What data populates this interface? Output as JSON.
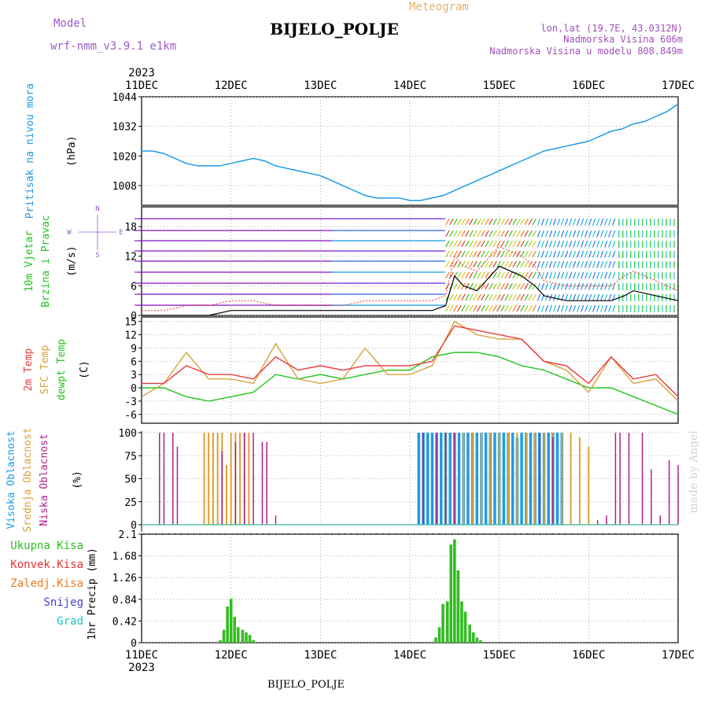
{
  "header": {
    "model_label": "Model",
    "model_name": "wrf-nmm_v3.9.1 e1km",
    "meteogram_label": "Meteogram",
    "station": "BIJELO_POLJE",
    "lonlat": "lon,lat (19.7E, 43.0312N)",
    "altitude": "Nadmorska Visina 606m",
    "model_altitude": "Nadmorska Visina u modelu 808.849m",
    "credit": "made by Angel",
    "footer_station": "BIJELO_POLJE"
  },
  "colors": {
    "pressure": "#1e9be6",
    "wind_speed": "#000000",
    "wind_gust": "#e83030",
    "temp2m": "#e83a3a",
    "sfc_temp": "#d8a23a",
    "dewpoint": "#22c41e",
    "high_cloud": "#1e9be6",
    "mid_cloud": "#e0a030",
    "low_cloud": "#b0208a",
    "total_precip": "#33bb22",
    "conv_precip": "#e83030",
    "frozen_precip": "#ee7a22",
    "snow": "#4a3ed8",
    "hail": "#22c4c4",
    "model_label": "#9a5cc8",
    "meteogram_label": "#e0b070",
    "station_info": "#a050b8"
  },
  "chart_data": [
    {
      "id": "pressure",
      "type": "line",
      "ylabel_1": "Pritisak na nivou mora",
      "unit": "(hPa)",
      "ylim": [
        1000,
        1044
      ],
      "yticks": [
        "1008",
        "1020",
        "1032",
        "1044"
      ],
      "x_days": [
        0,
        0.125,
        0.25,
        0.375,
        0.5,
        0.625,
        0.75,
        0.875,
        1.0,
        1.125,
        1.25,
        1.375,
        1.5,
        1.625,
        1.75,
        1.875,
        2.0,
        2.125,
        2.25,
        2.375,
        2.5,
        2.625,
        2.75,
        2.875,
        3.0,
        3.125,
        3.25,
        3.375,
        3.5,
        3.625,
        3.75,
        3.875,
        4.0,
        4.125,
        4.25,
        4.375,
        4.5,
        4.625,
        4.75,
        4.875,
        5.0,
        5.125,
        5.25,
        5.375,
        5.5,
        5.625,
        5.75,
        5.875,
        6.0
      ],
      "values": [
        1022,
        1022,
        1021,
        1019,
        1017,
        1016,
        1016,
        1016,
        1017,
        1018,
        1019,
        1018,
        1016,
        1015,
        1014,
        1013,
        1012,
        1010,
        1008,
        1006,
        1004,
        1003,
        1003,
        1003,
        1002,
        1002,
        1003,
        1004,
        1006,
        1008,
        1010,
        1012,
        1014,
        1016,
        1018,
        1020,
        1022,
        1023,
        1024,
        1025,
        1026,
        1028,
        1030,
        1031,
        1033,
        1034,
        1036,
        1038,
        1041
      ]
    },
    {
      "id": "wind",
      "type": "line",
      "ylabel_1": "10m Vjetar",
      "ylabel_2": "Brzina i Pravac",
      "unit": "(m/s)",
      "ylim": [
        0,
        22
      ],
      "yticks": [
        "0",
        "6",
        "12",
        "18"
      ],
      "compass": {
        "n": "N",
        "e": "E",
        "s": "S",
        "w": "W"
      },
      "x_days": [
        0,
        0.25,
        0.5,
        0.75,
        1.0,
        1.25,
        1.5,
        1.75,
        2.0,
        2.25,
        2.5,
        2.75,
        3.0,
        3.25,
        3.4,
        3.5,
        3.6,
        3.75,
        4.0,
        4.25,
        4.4,
        4.5,
        4.75,
        5.0,
        5.25,
        5.4,
        5.5,
        5.75,
        6.0
      ],
      "speed": [
        0,
        0,
        0,
        0,
        1,
        1,
        1,
        1,
        1,
        1,
        1,
        1,
        1,
        1,
        2,
        8,
        6,
        5,
        10,
        8,
        6,
        4,
        3,
        3,
        3,
        4,
        5,
        4,
        3
      ],
      "gust": [
        1,
        1,
        2,
        2,
        3,
        3,
        2,
        2,
        2,
        2,
        3,
        3,
        3,
        3,
        4,
        12,
        10,
        9,
        14,
        12,
        10,
        7,
        6,
        6,
        6,
        8,
        9,
        7,
        5
      ]
    },
    {
      "id": "temperature",
      "type": "line",
      "ylabel_1": "2m Temp",
      "ylabel_2": "SFC Temp",
      "ylabel_3": "dewpt Temp",
      "unit": "(C)",
      "ylim": [
        -8,
        16
      ],
      "yticks": [
        "-6",
        "-3",
        "0",
        "3",
        "6",
        "9",
        "12",
        "15"
      ],
      "x_days": [
        0,
        0.25,
        0.5,
        0.75,
        1.0,
        1.25,
        1.5,
        1.75,
        2.0,
        2.25,
        2.5,
        2.75,
        3.0,
        3.25,
        3.5,
        3.75,
        4.0,
        4.25,
        4.5,
        4.75,
        5.0,
        5.25,
        5.5,
        5.75,
        6.0
      ],
      "series": [
        {
          "name": "2m Temp",
          "values": [
            1,
            1,
            5,
            3,
            3,
            2,
            7,
            4,
            5,
            4,
            5,
            5,
            5,
            6,
            14,
            13,
            12,
            11,
            6,
            5,
            1,
            7,
            2,
            3,
            -2
          ]
        },
        {
          "name": "SFC Temp",
          "values": [
            -2,
            1,
            8,
            2,
            2,
            1,
            10,
            2,
            1,
            2,
            9,
            3,
            3,
            5,
            15,
            12,
            11,
            11,
            6,
            4,
            -1,
            7,
            1,
            2,
            -3
          ]
        },
        {
          "name": "dewpt Temp",
          "values": [
            0,
            0,
            -2,
            -3,
            -2,
            -1,
            3,
            2,
            3,
            2,
            3,
            4,
            4,
            7,
            8,
            8,
            7,
            5,
            4,
            2,
            0,
            0,
            -2,
            -4,
            -6
          ]
        }
      ]
    },
    {
      "id": "clouds",
      "type": "bar",
      "ylabel_1": "Visoka Oblacnost",
      "ylabel_2": "Srednja Oblacnost",
      "ylabel_3": "Niska Oblacnost",
      "unit": "(%)",
      "ylim": [
        0,
        100
      ],
      "yticks": [
        "0",
        "25",
        "50",
        "75",
        "100"
      ],
      "series": [
        {
          "name": "Visoka Oblacnost",
          "x_days": [
            3.1,
            3.15,
            3.2,
            3.25,
            3.3,
            3.35,
            3.4,
            3.45,
            3.5,
            3.55,
            3.6,
            3.65,
            3.7,
            3.75,
            3.8,
            3.85,
            3.9,
            3.95,
            4.0,
            4.05,
            4.1,
            4.15,
            4.2,
            4.25,
            4.3,
            4.35,
            4.4,
            4.45,
            4.5,
            4.55,
            4.6,
            4.65,
            4.7
          ],
          "values": [
            100,
            100,
            100,
            100,
            100,
            100,
            100,
            100,
            100,
            100,
            100,
            100,
            100,
            100,
            100,
            100,
            100,
            100,
            100,
            100,
            100,
            100,
            95,
            100,
            100,
            100,
            100,
            100,
            100,
            100,
            100,
            100,
            100
          ]
        },
        {
          "name": "Srednja Oblacnost",
          "x_days": [
            0.7,
            0.75,
            0.8,
            0.85,
            0.9,
            0.95,
            1.0,
            1.05,
            1.1,
            1.15,
            1.2,
            3.4,
            3.5,
            3.6,
            3.7,
            3.8,
            3.9,
            4.0,
            4.1,
            4.2,
            4.3,
            4.4,
            4.5,
            4.6,
            4.7,
            4.8,
            4.9,
            5.0
          ],
          "values": [
            100,
            100,
            100,
            100,
            100,
            65,
            100,
            100,
            100,
            100,
            100,
            100,
            100,
            100,
            100,
            100,
            100,
            100,
            100,
            100,
            100,
            100,
            100,
            100,
            100,
            100,
            95,
            85
          ]
        },
        {
          "name": "Niska Oblacnost",
          "x_days": [
            0.2,
            0.25,
            0.35,
            0.4,
            0.9,
            1.05,
            1.15,
            1.25,
            1.35,
            1.4,
            1.5,
            1.6,
            3.15,
            3.3,
            3.4,
            3.5,
            4.45,
            4.6,
            5.1,
            5.2,
            5.3,
            5.35,
            5.45,
            5.6,
            5.7,
            5.8,
            5.9,
            6.0
          ],
          "values": [
            100,
            100,
            100,
            85,
            80,
            90,
            100,
            100,
            90,
            90,
            10,
            0,
            100,
            100,
            100,
            100,
            100,
            95,
            5,
            10,
            100,
            100,
            100,
            100,
            60,
            10,
            70,
            65
          ]
        }
      ]
    },
    {
      "id": "precip",
      "type": "bar",
      "ylabel_1": "1hr Precip",
      "unit": "(mm)",
      "legend": [
        "Ukupna Kisa",
        "Konvek.Kisa",
        "Zaledj.Kisa",
        "Snijeg",
        "Grad"
      ],
      "ylim": [
        0,
        2.1
      ],
      "yticks": [
        "0",
        "0.42",
        "0.84",
        "1.26",
        "1.68",
        "2.1"
      ],
      "x_days": [
        0.88,
        0.92,
        0.96,
        1.0,
        1.04,
        1.08,
        1.13,
        1.17,
        1.21,
        1.25,
        3.29,
        3.33,
        3.37,
        3.42,
        3.46,
        3.5,
        3.54,
        3.58,
        3.62,
        3.67,
        3.71,
        3.75,
        3.79
      ],
      "values": [
        0.05,
        0.25,
        0.7,
        0.85,
        0.5,
        0.3,
        0.25,
        0.2,
        0.15,
        0.05,
        0.1,
        0.3,
        0.75,
        0.8,
        1.9,
        2.0,
        1.4,
        0.8,
        0.6,
        0.35,
        0.2,
        0.1,
        0.05
      ],
      "x_ticks": [
        "11DEC",
        "12DEC",
        "13DEC",
        "14DEC",
        "15DEC",
        "16DEC",
        "17DEC"
      ],
      "year_label": "2023"
    }
  ]
}
